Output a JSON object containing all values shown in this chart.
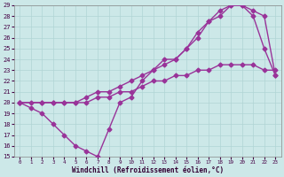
{
  "xlabel": "Windchill (Refroidissement éolien,°C)",
  "xlim": [
    -0.5,
    23.5
  ],
  "ylim": [
    15,
    29
  ],
  "xticks": [
    0,
    1,
    2,
    3,
    4,
    5,
    6,
    7,
    8,
    9,
    10,
    11,
    12,
    13,
    14,
    15,
    16,
    17,
    18,
    19,
    20,
    21,
    22,
    23
  ],
  "yticks": [
    15,
    16,
    17,
    18,
    19,
    20,
    21,
    22,
    23,
    24,
    25,
    26,
    27,
    28,
    29
  ],
  "bg_color": "#cce8e8",
  "grid_color": "#b0d4d4",
  "line_color": "#993399",
  "line1_x": [
    0,
    1,
    2,
    3,
    4,
    5,
    6,
    7,
    8,
    9,
    10,
    11,
    12,
    13,
    14,
    15,
    16,
    17,
    18,
    19,
    20,
    21,
    22,
    23
  ],
  "line1_y": [
    20,
    19.5,
    19,
    18,
    17,
    16,
    15.5,
    15,
    17.5,
    20,
    20.5,
    22,
    23,
    24,
    24,
    25,
    26.5,
    27.5,
    28,
    29,
    29,
    28,
    25,
    22.5
  ],
  "line2_x": [
    0,
    2,
    3,
    4,
    5,
    6,
    7,
    8,
    9,
    10,
    11,
    12,
    13,
    14,
    15,
    16,
    17,
    18,
    19,
    20,
    21,
    22,
    23
  ],
  "line2_y": [
    20,
    20,
    20,
    20,
    20,
    20.5,
    21,
    21,
    21.5,
    22,
    22.5,
    23,
    23.5,
    24,
    25,
    26,
    27.5,
    28.5,
    29,
    29,
    28.5,
    28,
    22.5
  ],
  "line3_x": [
    0,
    1,
    2,
    3,
    4,
    5,
    6,
    7,
    8,
    9,
    10,
    11,
    12,
    13,
    14,
    15,
    16,
    17,
    18,
    19,
    20,
    21,
    22,
    23
  ],
  "line3_y": [
    20,
    20,
    20,
    20,
    20,
    20,
    20,
    20.5,
    20.5,
    21,
    21,
    21.5,
    22,
    22,
    22.5,
    22.5,
    23,
    23,
    23.5,
    23.5,
    23.5,
    23.5,
    23,
    23
  ],
  "marker": "D",
  "marker_size": 2.5,
  "linewidth": 1.0
}
